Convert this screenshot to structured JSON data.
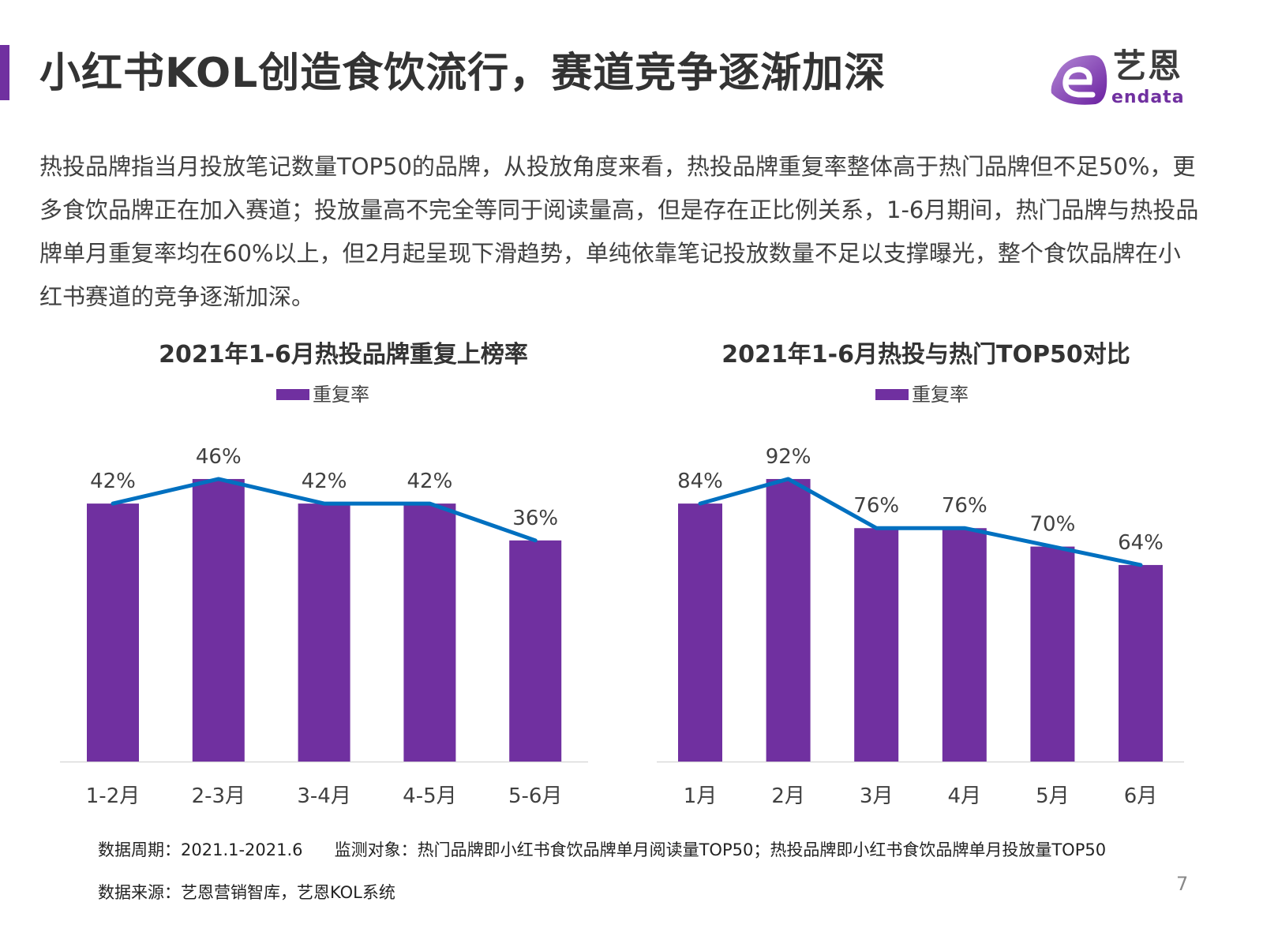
{
  "header": {
    "title": "小红书KOL创造食饮流行，赛道竞争逐渐加深",
    "logo_cn": "艺恩",
    "logo_en": "endata"
  },
  "body_text": "热投品牌指当月投放笔记数量TOP50的品牌，从投放角度来看，热投品牌重复率整体高于热门品牌但不足50%，更多食饮品牌正在加入赛道；投放量高不完全等同于阅读量高，但是存在正比例关系，1-6月期间，热门品牌与热投品牌单月重复率均在60%以上，但2月起呈现下滑趋势，单纯依靠笔记投放数量不足以支撑曝光，整个食饮品牌在小红书赛道的竞争逐渐加深。",
  "colors": {
    "bar": "#7030A0",
    "line": "#0070C0",
    "accent": "#7030A0"
  },
  "chart_data": [
    {
      "type": "bar",
      "title": "2021年1-6月热投品牌重复上榜率",
      "categories": [
        "1-2月",
        "2-3月",
        "3-4月",
        "4-5月",
        "5-6月"
      ],
      "series": [
        {
          "name": "重复率",
          "values": [
            42,
            46,
            42,
            42,
            36
          ]
        }
      ],
      "overlay_line": true,
      "data_labels": [
        "42%",
        "46%",
        "42%",
        "42%",
        "36%"
      ],
      "ylim": [
        0,
        60
      ],
      "grid": false,
      "legend": "top"
    },
    {
      "type": "bar",
      "title": "2021年1-6月热投与热门TOP50对比",
      "categories": [
        "1月",
        "2月",
        "3月",
        "4月",
        "5月",
        "6月"
      ],
      "series": [
        {
          "name": "重复率",
          "values": [
            84,
            92,
            76,
            76,
            70,
            64
          ]
        }
      ],
      "overlay_line": true,
      "data_labels": [
        "84%",
        "92%",
        "76%",
        "76%",
        "70%",
        "64%"
      ],
      "ylim": [
        0,
        120
      ],
      "grid": false,
      "legend": "top"
    }
  ],
  "footer": {
    "period": "数据周期：2021.1-2021.6",
    "target": "监测对象：热门品牌即小红书食饮品牌单月阅读量TOP50；热投品牌即小红书食饮品牌单月投放量TOP50",
    "source": "数据来源：艺恩营销智库，艺恩KOL系统",
    "page": "7"
  }
}
